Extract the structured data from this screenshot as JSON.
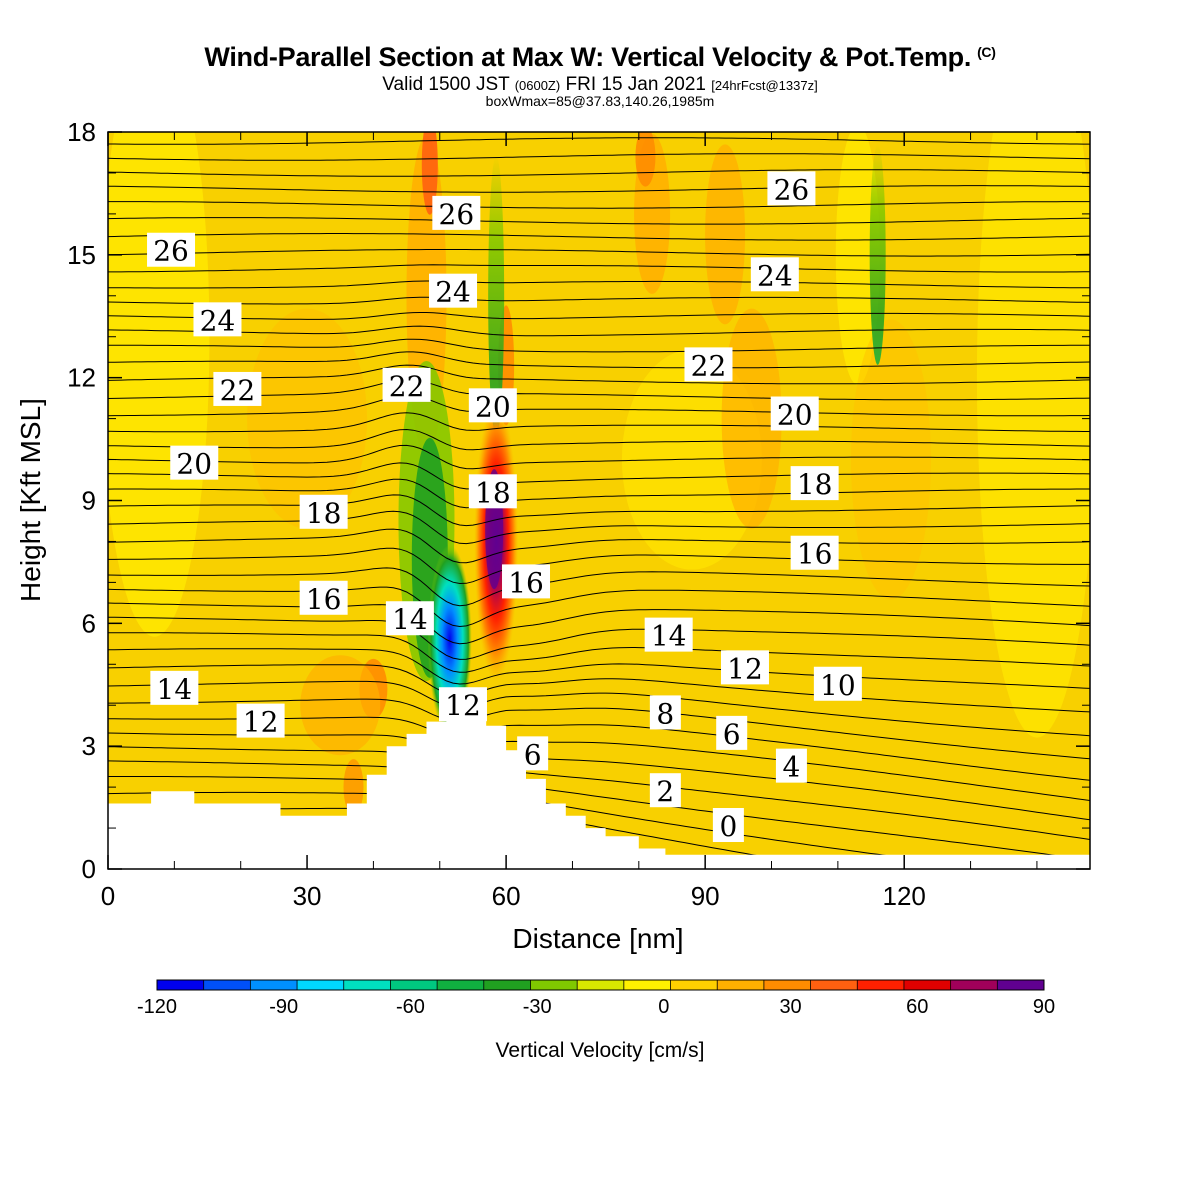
{
  "header": {
    "title": "Wind-Parallel Section at Max W: Vertical Velocity & Pot.Temp.",
    "copyright": "(C)",
    "subtitle_a": "Valid 1500 JST",
    "subtitle_b": "(0600Z)",
    "subtitle_c": "FRI 15 Jan 2021",
    "subtitle_d": "[24hrFcst@1337z]",
    "note": "boxWmax=85@37.83,140.26,1985m"
  },
  "colors": {
    "background_field": "#f8d000",
    "terrain": "#ffffff",
    "contour_line": "#000000",
    "colorbar": [
      "#0000ee",
      "#0050f8",
      "#0090ff",
      "#00d8ff",
      "#00e0c0",
      "#00c880",
      "#10b040",
      "#20a020",
      "#80c800",
      "#d8e800",
      "#fff000",
      "#ffd000",
      "#ffb000",
      "#ff8c00",
      "#ff6010",
      "#ff2000",
      "#e00000",
      "#a0005a",
      "#600090"
    ]
  },
  "chart_data": {
    "type": "heatmap",
    "xlabel": "Distance [nm]",
    "ylabel": "Height [Kft MSL]",
    "xlim": [
      0,
      148
    ],
    "ylim": [
      0,
      18
    ],
    "xticks": [
      0,
      30,
      60,
      90,
      120
    ],
    "yticks": [
      0,
      3,
      6,
      9,
      12,
      15,
      18
    ],
    "colorbar": {
      "title": "Vertical Velocity [cm/s]",
      "min": -120,
      "max": 90,
      "step": 10,
      "tick_labels": [
        "-120",
        "-90",
        "-60",
        "-30",
        "0",
        "30",
        "60",
        "90"
      ]
    },
    "box_max_w_cms": 85,
    "terrain_profile": {
      "x": [
        0,
        6.5,
        6.5,
        13,
        13,
        26,
        26,
        36,
        36,
        39,
        39,
        42,
        42,
        45,
        45,
        48,
        48,
        51,
        51,
        57,
        57,
        60,
        60,
        63,
        63,
        66,
        66,
        69,
        69,
        72,
        72,
        75,
        75,
        80,
        80,
        84,
        84,
        148
      ],
      "y": [
        1.6,
        1.6,
        1.9,
        1.9,
        1.6,
        1.6,
        1.3,
        1.3,
        1.6,
        1.6,
        2.3,
        2.3,
        3.0,
        3.0,
        3.3,
        3.3,
        3.6,
        3.6,
        3.8,
        3.8,
        3.5,
        3.5,
        2.9,
        2.9,
        2.2,
        2.2,
        1.6,
        1.6,
        1.3,
        1.3,
        1.0,
        1.0,
        0.8,
        0.8,
        0.5,
        0.5,
        0.35,
        0.35
      ]
    },
    "potential_temperature_labels": [
      {
        "value": "26",
        "x": 9.5,
        "y": 15.1
      },
      {
        "value": "24",
        "x": 16.5,
        "y": 13.4
      },
      {
        "value": "22",
        "x": 19.5,
        "y": 11.7
      },
      {
        "value": "20",
        "x": 13,
        "y": 9.9
      },
      {
        "value": "18",
        "x": 32.5,
        "y": 8.7
      },
      {
        "value": "16",
        "x": 32.5,
        "y": 6.6
      },
      {
        "value": "14",
        "x": 10,
        "y": 4.4
      },
      {
        "value": "12",
        "x": 23,
        "y": 3.6
      },
      {
        "value": "26",
        "x": 52.5,
        "y": 16
      },
      {
        "value": "24",
        "x": 52,
        "y": 14.1
      },
      {
        "value": "22",
        "x": 45,
        "y": 11.8
      },
      {
        "value": "20",
        "x": 58,
        "y": 11.3
      },
      {
        "value": "18",
        "x": 58,
        "y": 9.2
      },
      {
        "value": "16",
        "x": 63,
        "y": 7.0
      },
      {
        "value": "14",
        "x": 45.5,
        "y": 6.1
      },
      {
        "value": "12",
        "x": 53.5,
        "y": 4.0
      },
      {
        "value": "6",
        "x": 64,
        "y": 2.8
      },
      {
        "value": "26",
        "x": 103,
        "y": 16.6
      },
      {
        "value": "24",
        "x": 100.5,
        "y": 14.5
      },
      {
        "value": "22",
        "x": 90.5,
        "y": 12.3
      },
      {
        "value": "20",
        "x": 103.5,
        "y": 11.1
      },
      {
        "value": "18",
        "x": 106.5,
        "y": 9.4
      },
      {
        "value": "16",
        "x": 106.5,
        "y": 7.7
      },
      {
        "value": "14",
        "x": 84.5,
        "y": 5.7
      },
      {
        "value": "12",
        "x": 96,
        "y": 4.9
      },
      {
        "value": "10",
        "x": 110,
        "y": 4.5
      },
      {
        "value": "8",
        "x": 84,
        "y": 3.8
      },
      {
        "value": "6",
        "x": 94,
        "y": 3.3
      },
      {
        "value": "4",
        "x": 103,
        "y": 2.5
      },
      {
        "value": "2",
        "x": 84,
        "y": 1.9
      },
      {
        "value": "0",
        "x": 93.5,
        "y": 1.05
      }
    ]
  }
}
